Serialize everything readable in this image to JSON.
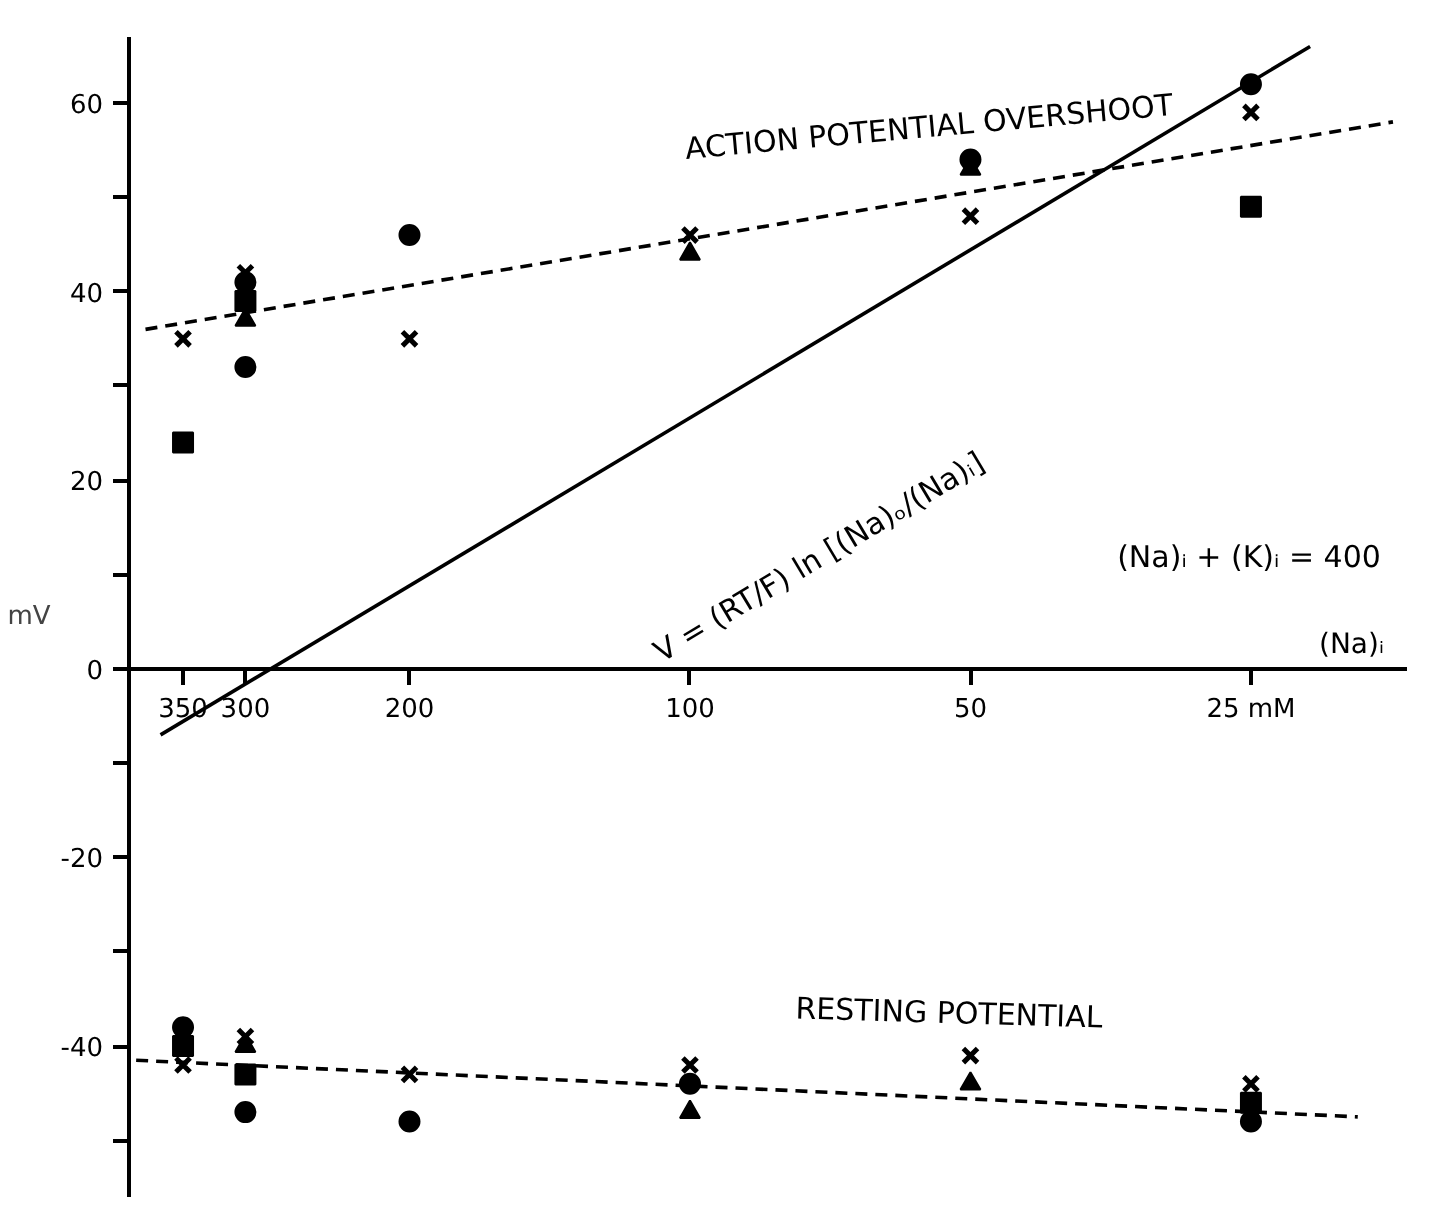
{
  "chart_data": {
    "type": "scatter",
    "xlabel": "(Na)ᵢ",
    "ylabel": "mV",
    "log": "x",
    "xlim": [
      400,
      17
    ],
    "ylim": [
      -56,
      67
    ],
    "xticks": [
      350,
      300,
      200,
      100,
      50,
      {
        "value": 25,
        "label": "25 mM"
      }
    ],
    "yticks": [
      60,
      {
        "value": 50,
        "label": null
      },
      40,
      {
        "value": 30,
        "label": null
      },
      20,
      {
        "value": 10,
        "label": null
      },
      0,
      {
        "value": -10,
        "label": null
      },
      -20,
      {
        "value": -30,
        "label": null
      },
      -40,
      {
        "value": -50,
        "label": null
      }
    ],
    "grid": false,
    "annotations": [
      "ACTION POTENTIAL OVERSHOOT",
      "V = (RT/F) ln [(Na)ₒ/(Na)ᵢ]",
      "(Na)ᵢ + (K)ᵢ = 400",
      "RESTING POTENTIAL"
    ],
    "series": [
      {
        "marker": "circle",
        "color": "#000000",
        "x": [
          300,
          300,
          200,
          50,
          25,
          350,
          300,
          200,
          100,
          25
        ],
        "values": [
          41,
          32,
          46,
          54,
          62,
          -38,
          -47,
          -48,
          -44,
          -48
        ]
      },
      {
        "marker": "triangle",
        "color": "#000000",
        "x": [
          300,
          100,
          50,
          300,
          100,
          50
        ],
        "values": [
          37,
          44,
          53,
          -40,
          -47,
          -44
        ]
      },
      {
        "marker": "square",
        "color": "#000000",
        "x": [
          350,
          300,
          25,
          350,
          300,
          25
        ],
        "values": [
          24,
          39,
          49,
          -40,
          -43,
          -46
        ]
      },
      {
        "marker": "cross",
        "color": "#000000",
        "x": [
          350,
          300,
          200,
          100,
          50,
          25,
          350,
          300,
          200,
          100,
          50,
          25
        ],
        "values": [
          35,
          42,
          35,
          46,
          48,
          59,
          -42,
          -39,
          -43,
          -42,
          -41,
          -44
        ]
      },
      {
        "type": "line",
        "marker": "none",
        "line_style": "solid",
        "color": "#000000",
        "x": [
          370,
          21.6
        ],
        "values": [
          -7,
          66
        ]
      },
      {
        "type": "line",
        "marker": "none",
        "line_style": "dashed",
        "color": "#000000",
        "x": [
          384,
          17.6
        ],
        "values": [
          36,
          58
        ]
      },
      {
        "type": "line",
        "marker": "none",
        "line_style": "dashed",
        "color": "#000000",
        "x": [
          393,
          19.2
        ],
        "values": [
          -41.5,
          -47.5
        ]
      }
    ]
  }
}
